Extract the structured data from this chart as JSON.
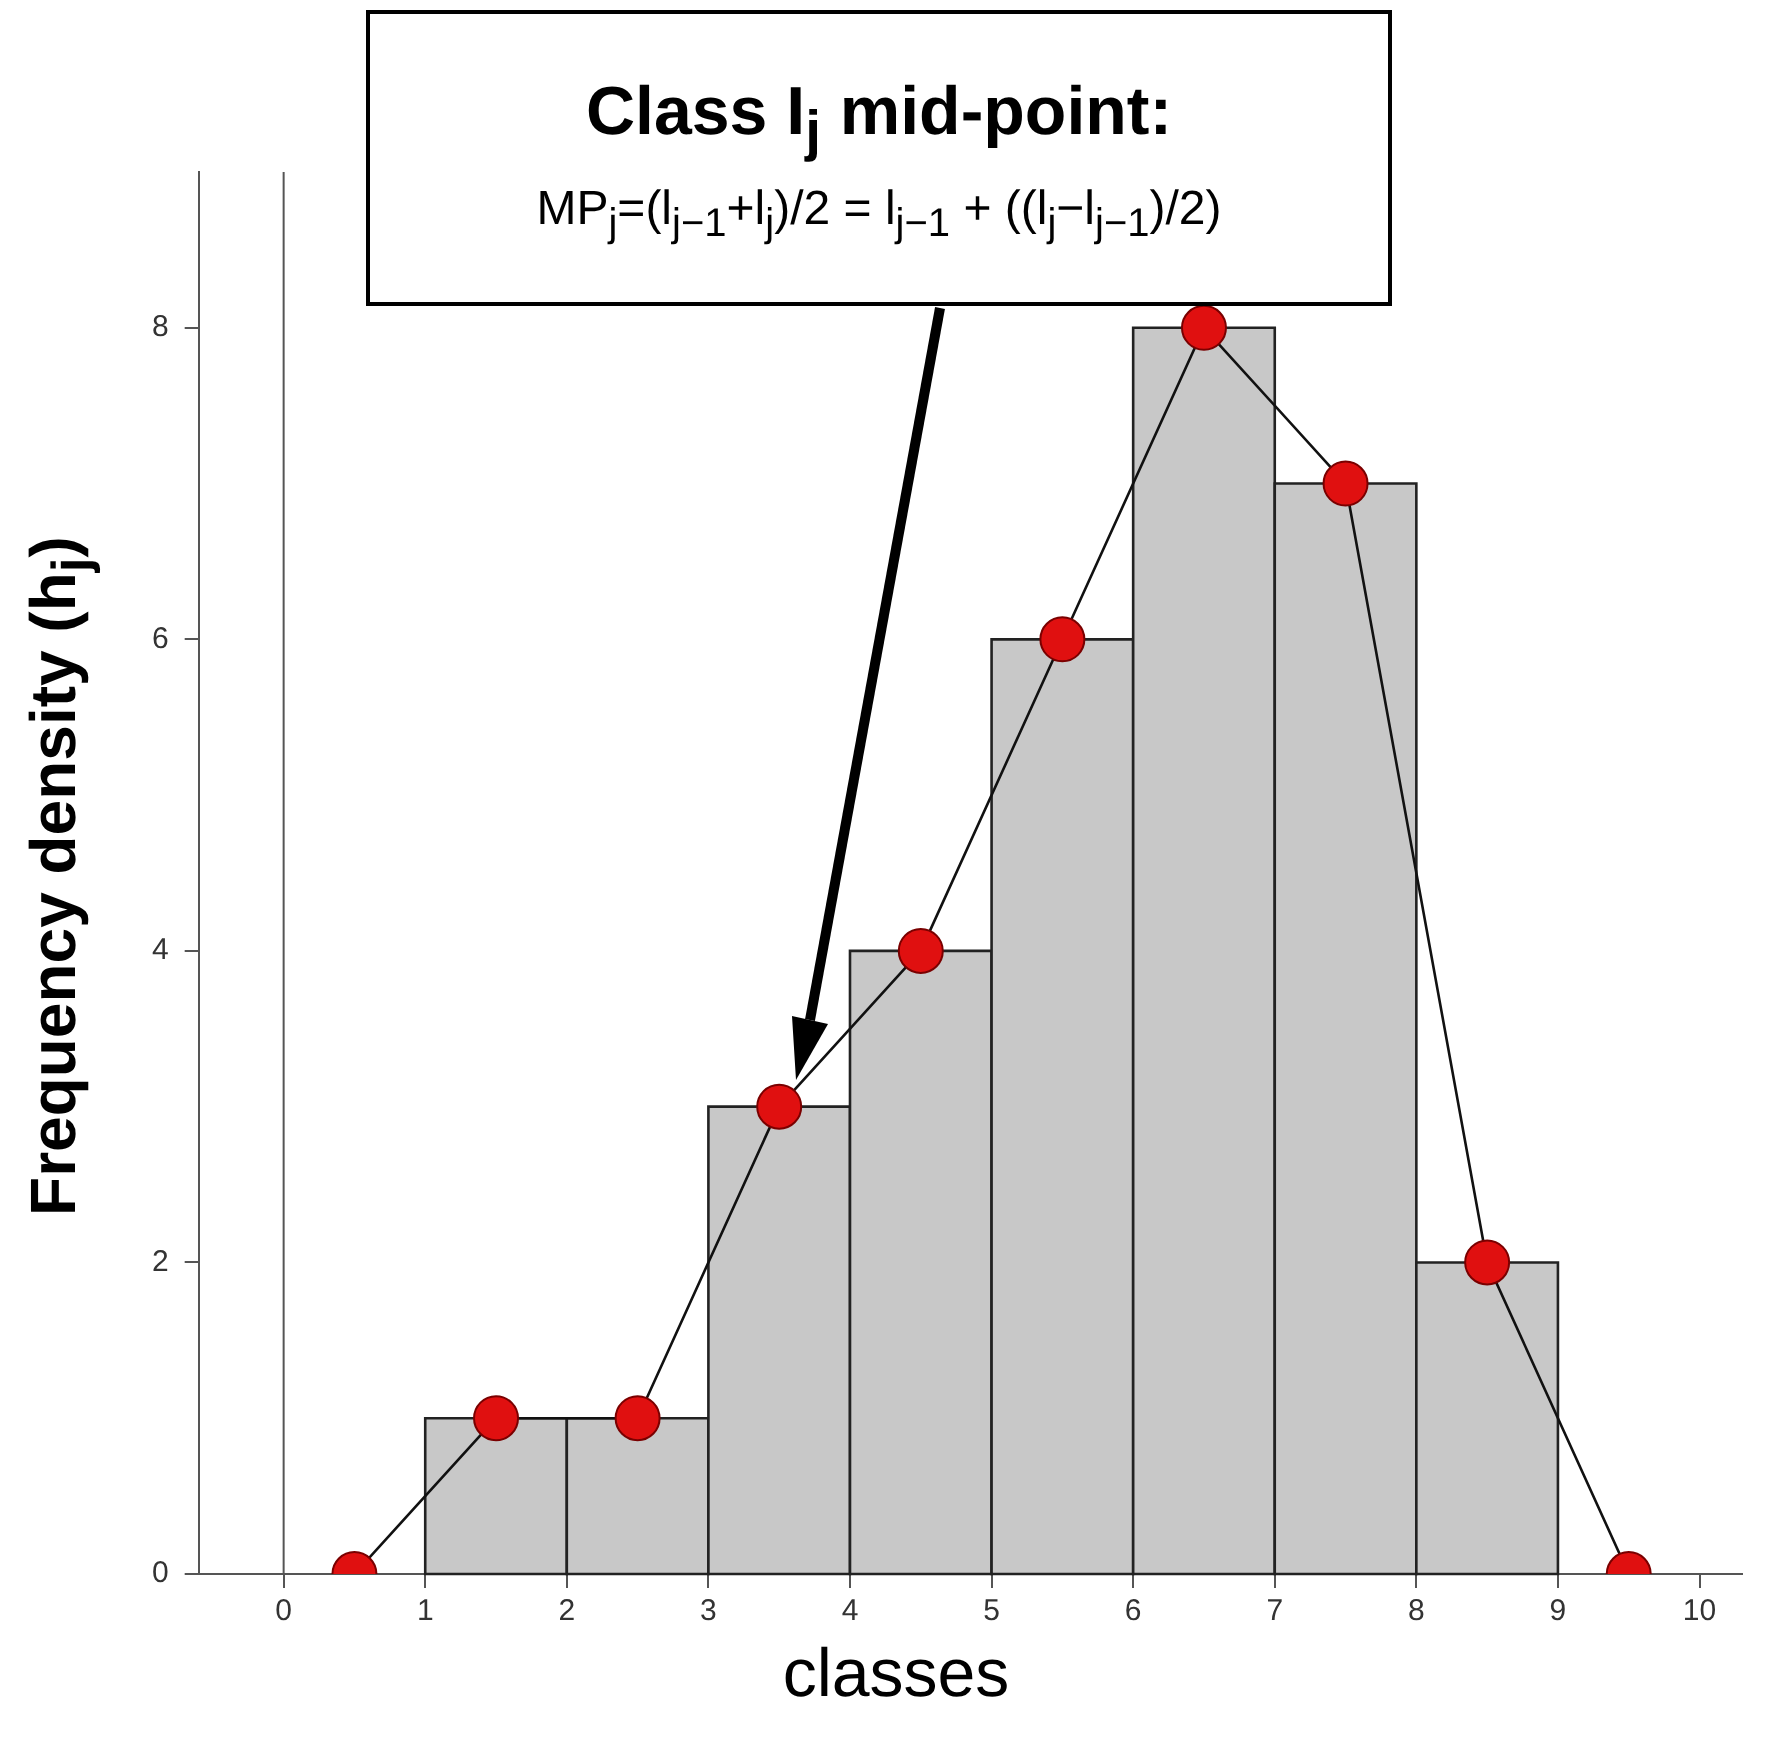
{
  "chart_data": {
    "type": "histogram",
    "xlabel": "classes",
    "ylabel": "Frequency density (h$_{j}$)",
    "series": [
      {
        "type": "histogram",
        "bins": [
          1,
          2,
          3,
          4,
          5,
          6,
          7,
          8,
          9
        ],
        "values": [
          1,
          1,
          3,
          4,
          6,
          8,
          7,
          2
        ],
        "color": "#c8c8c8"
      },
      {
        "type": "line",
        "x": [
          0.5,
          1.5,
          2.5,
          3.5,
          4.5,
          5.5,
          6.5,
          7.5,
          8.5,
          9.5
        ],
        "values": [
          0,
          1,
          1,
          3,
          4,
          6,
          8,
          7,
          2,
          0
        ],
        "color": "#e01010",
        "marker": "circle"
      }
    ],
    "xlim": [
      -0.6,
      10.3
    ],
    "xticks": [
      0,
      1,
      2,
      3,
      4,
      5,
      6,
      7,
      8,
      9,
      10
    ],
    "ylim": [
      0,
      9
    ],
    "yticks": [
      0,
      2,
      4,
      6,
      8
    ],
    "ref_lines": [
      {
        "axis": "x",
        "value": 0,
        "color": "#555555"
      }
    ],
    "annotations": [
      "Class I$_{j}$ mid-point:",
      "MP$_{j}$=(l$_{j−1}$+l$_{j}$)/2 = l$_{j−1}$ + ((l$_{j}$−l$_{j−1}$)/2)"
    ],
    "grid": false,
    "legend": false
  }
}
